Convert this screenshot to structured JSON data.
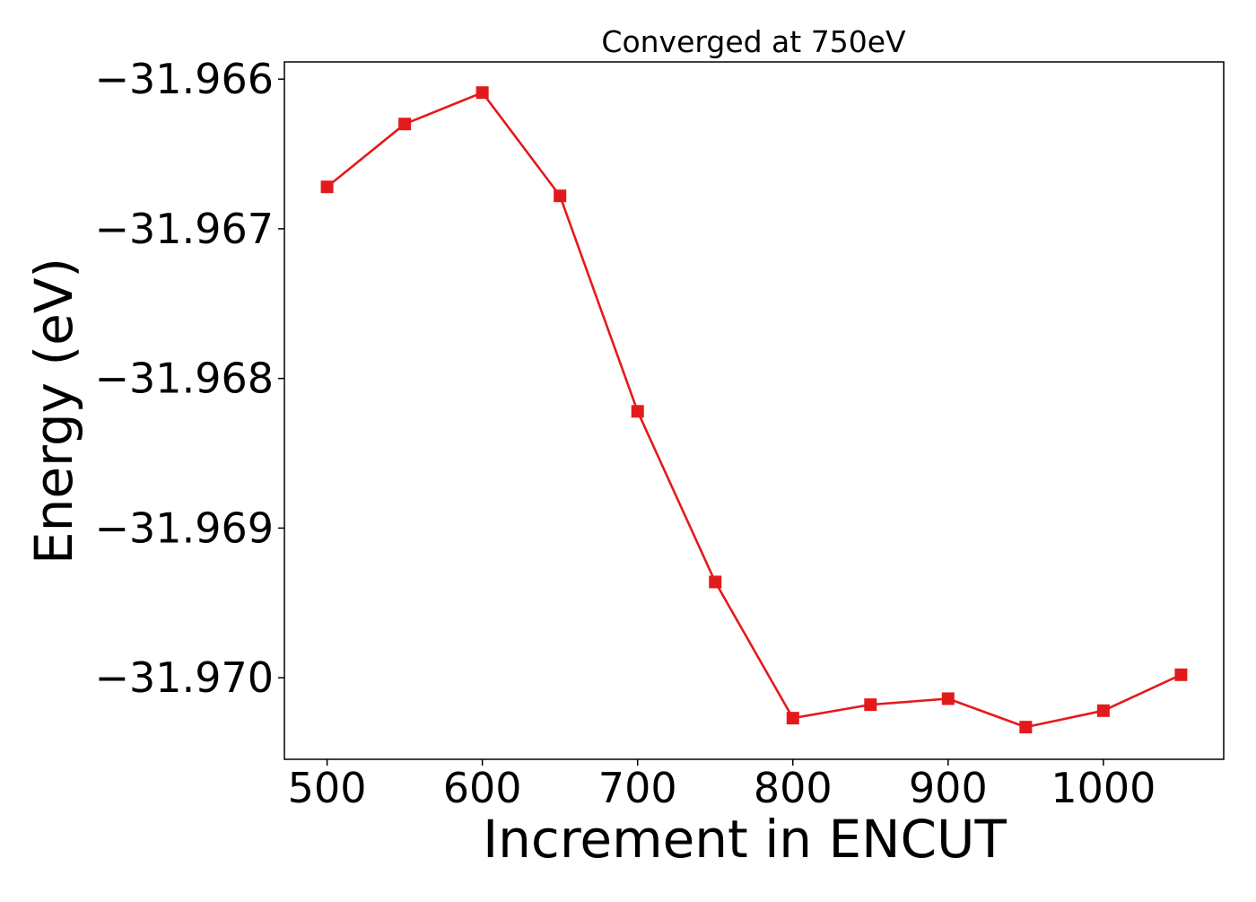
{
  "chart_data": {
    "type": "line",
    "title": "Converged at 750eV",
    "xlabel": "Increment in ENCUT",
    "ylabel": "Energy (eV)",
    "x": [
      500,
      550,
      600,
      650,
      700,
      750,
      800,
      850,
      900,
      950,
      1000,
      1050
    ],
    "series": [
      {
        "values": [
          -31.96672,
          -31.9663,
          -31.96609,
          -31.96678,
          -31.96822,
          -31.96936,
          -31.97027,
          -31.97018,
          -31.97014,
          -31.97033,
          -31.97022,
          -31.96998
        ],
        "color": "#e31a1c",
        "marker": "square"
      }
    ],
    "xlim": [
      472.5,
      1077.5
    ],
    "ylim": [
      -31.970545,
      -31.965885
    ],
    "xticks": [
      500,
      600,
      700,
      800,
      900,
      1000
    ],
    "xtick_labels": [
      "500",
      "600",
      "700",
      "800",
      "900",
      "1000"
    ],
    "yticks": [
      -31.966,
      -31.967,
      -31.968,
      -31.969,
      -31.97
    ],
    "ytick_labels": [
      "−31.966",
      "−31.967",
      "−31.968",
      "−31.969",
      "−31.970"
    ],
    "grid": false,
    "legend": false
  }
}
